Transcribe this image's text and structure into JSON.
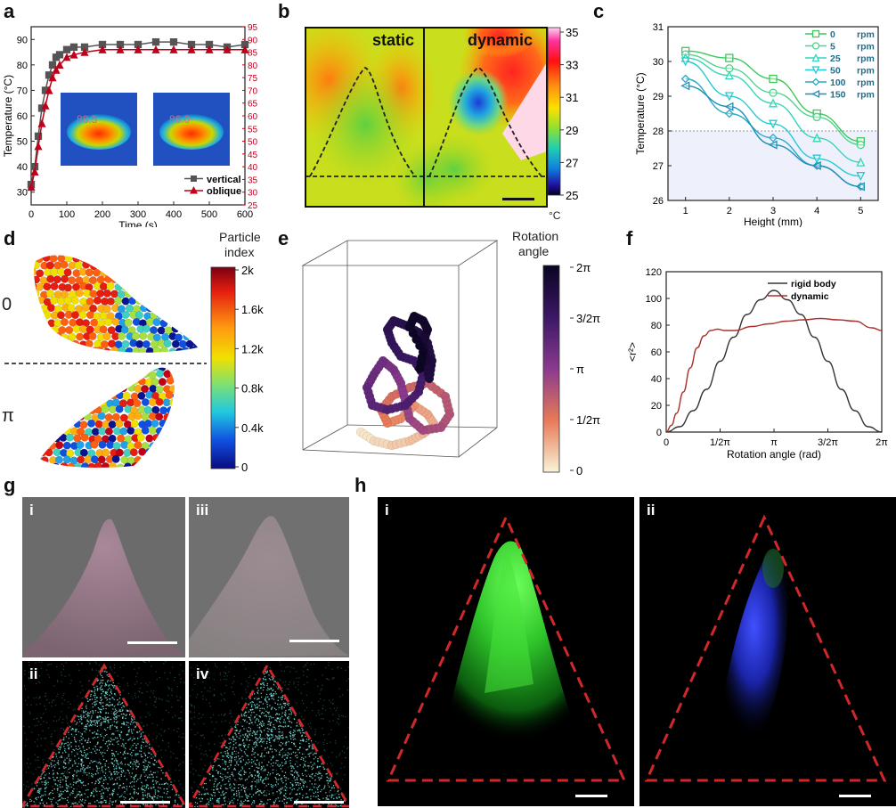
{
  "panel_labels": {
    "a": "a",
    "b": "b",
    "c": "c",
    "d": "d",
    "e": "e",
    "f": "f",
    "g": "g",
    "h": "h"
  },
  "colors": {
    "vertical": "#555555",
    "oblique": "#c0001a",
    "dashed": "#222222",
    "c_series": [
      "#3ec85a",
      "#4fd48e",
      "#33d6b8",
      "#27c9d0",
      "#2aa9c9",
      "#1d8fb8"
    ],
    "rigid": "#333333",
    "dynamic": "#a8312b",
    "triangle": "#d0282a"
  },
  "chart_data": [
    {
      "id": "a",
      "type": "line",
      "xlabel": "Time (s)",
      "ylabel": "Temperature (°C)",
      "xlim": [
        0,
        600
      ],
      "ylim": [
        25,
        95
      ],
      "xticks": [
        "0",
        "100",
        "200",
        "300",
        "400",
        "500",
        "600"
      ],
      "yticks": [
        "30",
        "40",
        "50",
        "60",
        "70",
        "80",
        "90"
      ],
      "right_axis_ticks": [
        "25",
        "30",
        "35",
        "40",
        "45",
        "50",
        "55",
        "60",
        "65",
        "70",
        "75",
        "80",
        "85",
        "90",
        "95"
      ],
      "legend": [
        "vertical",
        "oblique"
      ],
      "inset_labels": [
        "88.5",
        "86.0"
      ],
      "series": [
        {
          "name": "vertical",
          "marker": "square",
          "x": [
            0,
            10,
            20,
            30,
            40,
            50,
            60,
            70,
            80,
            100,
            120,
            150,
            200,
            250,
            300,
            350,
            400,
            450,
            500,
            550,
            600
          ],
          "y": [
            33,
            40,
            52,
            63,
            70,
            76,
            80,
            83,
            84,
            86,
            87,
            87,
            88,
            88,
            88,
            89,
            89,
            88,
            88,
            87,
            88
          ]
        },
        {
          "name": "oblique",
          "marker": "triangle",
          "x": [
            0,
            10,
            20,
            30,
            40,
            50,
            60,
            70,
            80,
            100,
            120,
            150,
            200,
            250,
            300,
            350,
            400,
            450,
            500,
            550,
            600
          ],
          "y": [
            32,
            38,
            48,
            57,
            64,
            70,
            75,
            78,
            80,
            83,
            84,
            85,
            86,
            86,
            86,
            86,
            86,
            86,
            86,
            86,
            86
          ]
        }
      ]
    },
    {
      "id": "b",
      "type": "heatmap",
      "regions": [
        "static",
        "dynamic"
      ],
      "colorbar_ticks": [
        "35",
        "33",
        "31",
        "29",
        "27",
        "25"
      ],
      "colorbar_unit": "°C"
    },
    {
      "id": "c",
      "type": "line",
      "xlabel": "Height (mm)",
      "ylabel": "Temperature (°C)",
      "xlim": [
        0.6,
        5.4
      ],
      "ylim": [
        26,
        31
      ],
      "xticks": [
        "1",
        "2",
        "3",
        "4",
        "5"
      ],
      "yticks": [
        "26",
        "27",
        "28",
        "29",
        "30",
        "31"
      ],
      "threshold": 28,
      "legend_unit": "rpm",
      "x": [
        1,
        2,
        3,
        4,
        5
      ],
      "series": [
        {
          "name": "0",
          "marker": "square",
          "values": [
            30.3,
            30.1,
            29.5,
            28.5,
            27.7
          ]
        },
        {
          "name": "5",
          "marker": "circle",
          "values": [
            30.2,
            29.8,
            29.1,
            28.4,
            27.6
          ]
        },
        {
          "name": "25",
          "marker": "triangle-up",
          "values": [
            30.1,
            29.6,
            28.8,
            27.8,
            27.1
          ]
        },
        {
          "name": "50",
          "marker": "triangle-down",
          "values": [
            30.0,
            29.0,
            28.2,
            27.2,
            26.7
          ]
        },
        {
          "name": "100",
          "marker": "diamond",
          "values": [
            29.5,
            28.5,
            27.8,
            27.0,
            26.4
          ]
        },
        {
          "name": "150",
          "marker": "triangle-left",
          "values": [
            29.3,
            28.7,
            27.6,
            27.0,
            26.4
          ]
        }
      ]
    },
    {
      "id": "d",
      "type": "scatter",
      "row_labels": [
        "0",
        "π"
      ],
      "colorbar_title": [
        "Particle",
        "index"
      ],
      "colorbar_ticks": [
        "2k",
        "1.6k",
        "1.2k",
        "0.8k",
        "0.4k",
        "0"
      ]
    },
    {
      "id": "e",
      "type": "line",
      "colorbar_title": [
        "Rotation",
        "angle"
      ],
      "colorbar_ticks": [
        "2π",
        "3/2π",
        "π",
        "1/2π",
        "0"
      ]
    },
    {
      "id": "f",
      "type": "line",
      "xlabel": "Rotation angle (rad)",
      "ylabel": "<r²>",
      "xlim": [
        0,
        6.2832
      ],
      "ylim": [
        0,
        120
      ],
      "xticks": [
        "0",
        "1/2π",
        "π",
        "3/2π",
        "2π"
      ],
      "yticks": [
        "0",
        "20",
        "40",
        "60",
        "80",
        "100",
        "120"
      ],
      "series": [
        {
          "name": "rigid body",
          "x": [
            0,
            0.3927,
            0.7854,
            1.1781,
            1.5708,
            1.9635,
            2.3562,
            2.7489,
            3.1416,
            3.5343,
            3.927,
            4.3197,
            4.7124,
            5.1051,
            5.4978,
            5.8905,
            6.2832
          ],
          "y": [
            0,
            4,
            16,
            32,
            53,
            71,
            88,
            99,
            106,
            99,
            88,
            71,
            53,
            32,
            16,
            4,
            0
          ]
        },
        {
          "name": "dynamic",
          "x": [
            0,
            0.15,
            0.3,
            0.5,
            0.7,
            0.9,
            1.1,
            1.3,
            1.5,
            1.7,
            2.0,
            2.5,
            3.0,
            3.5,
            4.0,
            4.5,
            5.0,
            5.5,
            6.0,
            6.2832
          ],
          "y": [
            0,
            5,
            14,
            30,
            48,
            63,
            72,
            76,
            77,
            76,
            76,
            79,
            81,
            83,
            84,
            85,
            84,
            83,
            78,
            76
          ]
        }
      ]
    }
  ],
  "g_labels": [
    "i",
    "iii",
    "ii",
    "iv"
  ],
  "h_labels": [
    "i",
    "ii"
  ]
}
